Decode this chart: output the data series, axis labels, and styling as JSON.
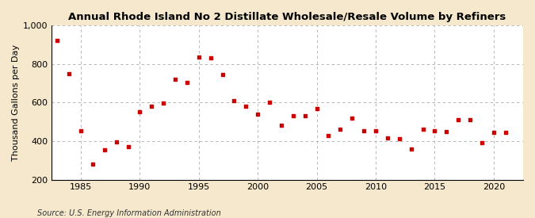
{
  "title": "Annual Rhode Island No 2 Distillate Wholesale/Resale Volume by Refiners",
  "ylabel": "Thousand Gallons per Day",
  "source": "Source: U.S. Energy Information Administration",
  "background_color": "#f5e8cc",
  "plot_bg_color": "#ffffff",
  "grid_color": "#aaaaaa",
  "marker_color": "#cc0000",
  "ylim": [
    200,
    1000
  ],
  "yticks": [
    200,
    400,
    600,
    800,
    1000
  ],
  "ytick_labels": [
    "200",
    "400",
    "600",
    "800",
    "1,000"
  ],
  "xlim": [
    1982.5,
    2022.5
  ],
  "xticks": [
    1985,
    1990,
    1995,
    2000,
    2005,
    2010,
    2015,
    2020
  ],
  "data": [
    [
      1983,
      920
    ],
    [
      1984,
      750
    ],
    [
      1985,
      455
    ],
    [
      1986,
      280
    ],
    [
      1987,
      355
    ],
    [
      1988,
      395
    ],
    [
      1989,
      370
    ],
    [
      1990,
      550
    ],
    [
      1991,
      580
    ],
    [
      1992,
      595
    ],
    [
      1993,
      720
    ],
    [
      1994,
      705
    ],
    [
      1995,
      835
    ],
    [
      1996,
      830
    ],
    [
      1997,
      745
    ],
    [
      1998,
      610
    ],
    [
      1999,
      580
    ],
    [
      2000,
      540
    ],
    [
      2001,
      600
    ],
    [
      2002,
      480
    ],
    [
      2003,
      530
    ],
    [
      2004,
      530
    ],
    [
      2005,
      570
    ],
    [
      2006,
      430
    ],
    [
      2007,
      460
    ],
    [
      2008,
      520
    ],
    [
      2009,
      455
    ],
    [
      2010,
      455
    ],
    [
      2011,
      415
    ],
    [
      2012,
      410
    ],
    [
      2013,
      360
    ],
    [
      2014,
      460
    ],
    [
      2015,
      455
    ],
    [
      2016,
      450
    ],
    [
      2017,
      510
    ],
    [
      2018,
      510
    ],
    [
      2019,
      390
    ],
    [
      2020,
      445
    ],
    [
      2021,
      445
    ]
  ],
  "title_fontsize": 9.5,
  "tick_fontsize": 8,
  "ylabel_fontsize": 8,
  "source_fontsize": 7
}
